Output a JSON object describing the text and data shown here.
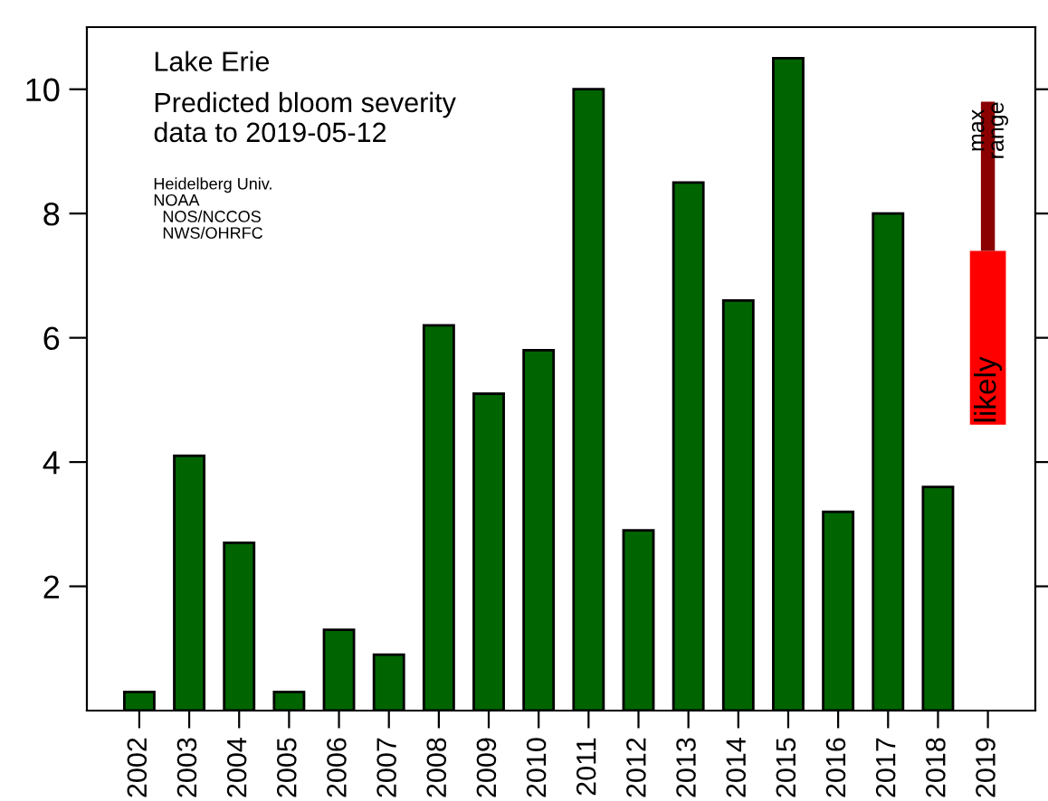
{
  "chart_data": {
    "type": "bar",
    "title": "Lake Erie",
    "subtitle": "Predicted bloom severity\ndata to 2019-05-12",
    "annotations": [
      "Heidelberg Univ.\nNOAA\n  NOS/NCCOS\n  NWS/OHRFC"
    ],
    "categories": [
      "2002",
      "2003",
      "2004",
      "2005",
      "2006",
      "2007",
      "2008",
      "2009",
      "2010",
      "2011",
      "2012",
      "2013",
      "2014",
      "2015",
      "2016",
      "2017",
      "2018",
      "2019"
    ],
    "series": [
      {
        "color": "#006400",
        "values": [
          0.3,
          4.1,
          2.7,
          0.3,
          1.3,
          0.9,
          6.2,
          5.1,
          5.8,
          10.0,
          2.9,
          8.5,
          6.6,
          10.5,
          3.2,
          8.0,
          3.6,
          null
        ]
      },
      {
        "name": "likely",
        "color": "#ff0000",
        "base": [
          null,
          null,
          null,
          null,
          null,
          null,
          null,
          null,
          null,
          null,
          null,
          null,
          null,
          null,
          null,
          null,
          null,
          4.6
        ],
        "values": [
          null,
          null,
          null,
          null,
          null,
          null,
          null,
          null,
          null,
          null,
          null,
          null,
          null,
          null,
          null,
          null,
          null,
          2.8
        ]
      },
      {
        "name": "max\nrange",
        "color": "#8b0000",
        "base": [
          null,
          null,
          null,
          null,
          null,
          null,
          null,
          null,
          null,
          null,
          null,
          null,
          null,
          null,
          null,
          null,
          null,
          7.4
        ],
        "values": [
          null,
          null,
          null,
          null,
          null,
          null,
          null,
          null,
          null,
          null,
          null,
          null,
          null,
          null,
          null,
          null,
          null,
          2.4
        ]
      }
    ],
    "ylim": [
      0,
      11
    ],
    "yticks": [
      2,
      4,
      6,
      8,
      10
    ],
    "grid": false,
    "legend": false
  }
}
